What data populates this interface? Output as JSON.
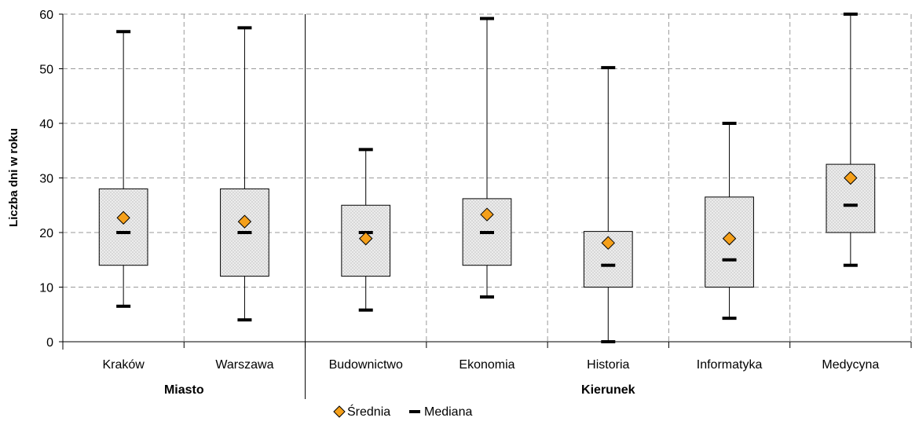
{
  "colors": {
    "box_fill": "#e6e6e6",
    "box_dots": "#b3b3b3",
    "box_stroke": "#000000",
    "mean_marker": "#f5a01a",
    "median_marker": "#000000",
    "grid": "#9a9a9a"
  },
  "chart_data": {
    "type": "boxplot",
    "ylabel": "Liczba dni w roku",
    "ylim": [
      0,
      60
    ],
    "yticks": [
      0,
      10,
      20,
      30,
      40,
      50,
      60
    ],
    "grid": true,
    "grid_style": "dashed",
    "legend_position": "bottom",
    "legend": [
      {
        "label": "Średnia",
        "marker": "diamond"
      },
      {
        "label": "Mediana",
        "marker": "dash"
      }
    ],
    "groups": [
      {
        "label": "Miasto",
        "categories": [
          "Kraków",
          "Warszawa"
        ]
      },
      {
        "label": "Kierunek",
        "categories": [
          "Budownictwo",
          "Ekonomia",
          "Historia",
          "Informatyka",
          "Medycyna"
        ]
      }
    ],
    "categories": [
      "Kraków",
      "Warszawa",
      "Budownictwo",
      "Ekonomia",
      "Historia",
      "Informatyka",
      "Medycyna"
    ],
    "series": [
      {
        "category": "Kraków",
        "min": 6.5,
        "q1": 14,
        "median": 20,
        "q3": 28,
        "max": 56.8,
        "mean": 22.7
      },
      {
        "category": "Warszawa",
        "min": 4,
        "q1": 12,
        "median": 20,
        "q3": 28,
        "max": 57.5,
        "mean": 22
      },
      {
        "category": "Budownictwo",
        "min": 5.8,
        "q1": 12,
        "median": 20,
        "q3": 25,
        "max": 35.2,
        "mean": 18.9
      },
      {
        "category": "Ekonomia",
        "min": 8.2,
        "q1": 14,
        "median": 20,
        "q3": 26.2,
        "max": 59.2,
        "mean": 23.3
      },
      {
        "category": "Historia",
        "min": 0,
        "q1": 10,
        "median": 14,
        "q3": 20.2,
        "max": 50.2,
        "mean": 18.1
      },
      {
        "category": "Informatyka",
        "min": 4.3,
        "q1": 10,
        "median": 15,
        "q3": 26.5,
        "max": 40,
        "mean": 18.9
      },
      {
        "category": "Medycyna",
        "min": 14,
        "q1": 20,
        "median": 25,
        "q3": 32.5,
        "max": 60,
        "mean": 30
      }
    ]
  }
}
